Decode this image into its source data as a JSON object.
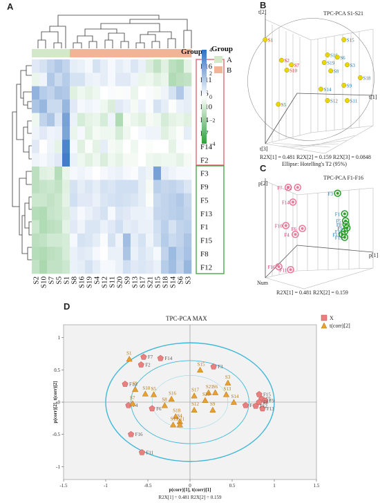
{
  "panels": {
    "A": "A",
    "B": "B",
    "C": "C",
    "D": "D"
  },
  "chart_data": [
    {
      "type": "heatmap",
      "title": "",
      "rows": [
        "F16",
        "F11",
        "F6",
        "F10",
        "F4",
        "F7",
        "F14",
        "F2",
        "F3",
        "F9",
        "F5",
        "F13",
        "F1",
        "F15",
        "F8",
        "F12"
      ],
      "columns": [
        "S2",
        "S10",
        "S7",
        "S5",
        "S1",
        "S8",
        "S16",
        "S19",
        "S4",
        "S12",
        "S11",
        "S20",
        "S9",
        "S13",
        "S17",
        "S21",
        "S15",
        "S18",
        "S14",
        "S6",
        "S3"
      ],
      "group_header": "Group",
      "groups": {
        "A": [
          "S2",
          "S10",
          "S7",
          "S5",
          "S1"
        ],
        "B": [
          "S8",
          "S16",
          "S19",
          "S4",
          "S12",
          "S11",
          "S20",
          "S9",
          "S13",
          "S17",
          "S21",
          "S15",
          "S18",
          "S14",
          "S6",
          "S3"
        ]
      },
      "legend": {
        "title": "Group",
        "items": [
          {
            "label": "A",
            "color": "#d2e8c8"
          },
          {
            "label": "B",
            "color": "#f2b496"
          }
        ]
      },
      "colorbar": {
        "ticks": [
          "4",
          "2",
          "0",
          "−2",
          "−4"
        ],
        "min": -4,
        "max": 4,
        "high_color": "#2f6fbf",
        "low_color": "#2f9e3a"
      },
      "row_box_colors": {
        "top": "#e05a6a",
        "bottom": "#3aa03a"
      },
      "values": [
        [
          0.6,
          0.8,
          1.2,
          1.5,
          1.2,
          0.5,
          0.4,
          0.2,
          0.8,
          0.5,
          0.2,
          0.5,
          0.3,
          0.7,
          0.4,
          -0.7,
          -1.2,
          -0.6,
          -1.3,
          -1.5,
          -0.5
        ],
        [
          -0.4,
          0.3,
          1.5,
          1.0,
          1.4,
          0.8,
          0.8,
          0.4,
          0.3,
          0.5,
          0.2,
          0.6,
          0.6,
          0.3,
          -0.4,
          -0.3,
          -0.6,
          -0.4,
          -1.5,
          -1.3,
          -1.2
        ],
        [
          2.1,
          1.4,
          1.2,
          1.6,
          1.5,
          -0.6,
          -0.3,
          -0.5,
          -0.3,
          0.0,
          0.1,
          -0.1,
          0.1,
          -0.4,
          0.0,
          0.1,
          -0.2,
          0.3,
          0.8,
          1.5,
          0.5
        ],
        [
          1.6,
          2.0,
          1.0,
          1.0,
          2.0,
          0.6,
          0.2,
          0.3,
          0.2,
          -0.3,
          -0.7,
          0.6,
          0.4,
          -0.2,
          0.4,
          0.1,
          0.8,
          0.5,
          -0.1,
          0.4,
          0.5
        ],
        [
          -0.3,
          1.2,
          1.6,
          0.7,
          2.6,
          0.4,
          -0.8,
          -0.5,
          -0.4,
          -0.8,
          0.3,
          -1.5,
          -0.2,
          -0.4,
          -0.6,
          -0.2,
          -0.3,
          -0.8,
          -0.5,
          -0.4,
          -0.6
        ],
        [
          0.3,
          0.6,
          0.3,
          0.4,
          2.5,
          -0.4,
          0.2,
          -0.6,
          -0.2,
          -0.3,
          -0.3,
          -0.8,
          -0.3,
          0.0,
          0.2,
          0.3,
          0.3,
          -0.6,
          -0.3,
          -0.1,
          0.5
        ],
        [
          0.6,
          0.0,
          0.3,
          -0.5,
          3.4,
          0.2,
          -0.6,
          -0.1,
          -0.5,
          0.5,
          -0.2,
          -0.3,
          0.0,
          -0.3,
          0.0,
          -0.1,
          0.0,
          0.0,
          -0.5,
          0.1,
          0.0
        ],
        [
          0.3,
          0.2,
          0.4,
          0.6,
          3.6,
          0.4,
          -0.3,
          -0.6,
          -0.3,
          -0.7,
          -0.3,
          -0.5,
          -0.2,
          -0.2,
          0.0,
          -0.3,
          -0.4,
          -0.3,
          -0.3,
          -0.5,
          -0.2
        ],
        [
          -1.3,
          -0.6,
          -0.5,
          -1.4,
          -0.4,
          0.2,
          0.3,
          0.2,
          0.0,
          0.2,
          0.3,
          0.4,
          0.2,
          0.1,
          0.5,
          0.3,
          2.6,
          0.5,
          0.3,
          0.2,
          0.2
        ],
        [
          -1.3,
          -1.1,
          -1.0,
          -1.2,
          -0.6,
          0.8,
          0.5,
          0.7,
          0.5,
          0.8,
          0.7,
          0.9,
          0.9,
          0.9,
          0.5,
          -0.2,
          1.3,
          1.1,
          1.2,
          1.0,
          0.7
        ],
        [
          -1.0,
          -1.0,
          -1.2,
          -1.0,
          -0.5,
          0.9,
          0.6,
          0.6,
          0.4,
          0.7,
          0.8,
          0.9,
          0.8,
          0.7,
          0.5,
          -0.1,
          1.0,
          1.2,
          1.3,
          1.5,
          1.1
        ],
        [
          -1.4,
          -1.5,
          -1.1,
          -1.0,
          -0.7,
          0.5,
          0.2,
          0.4,
          0.6,
          0.8,
          0.2,
          0.7,
          0.6,
          0.4,
          0.4,
          0.3,
          1.1,
          1.2,
          1.3,
          1.4,
          1.2
        ],
        [
          -1.0,
          -1.5,
          -1.3,
          -1.2,
          -0.5,
          0.6,
          0.3,
          0.7,
          0.7,
          0.4,
          0.6,
          0.9,
          0.5,
          0.6,
          0.4,
          0.4,
          0.9,
          1.3,
          0.8,
          1.2,
          1.3
        ],
        [
          -1.3,
          -1.2,
          -0.9,
          -0.9,
          -0.8,
          0.2,
          0.8,
          0.7,
          0.5,
          0.1,
          0.8,
          0.3,
          1.8,
          0.5,
          0.8,
          0.3,
          0.8,
          1.4,
          1.0,
          1.2,
          1.6
        ],
        [
          -1.4,
          -1.5,
          -1.3,
          -1.2,
          -0.8,
          0.4,
          0.6,
          0.5,
          0.2,
          0.0,
          0.4,
          0.4,
          1.6,
          0.4,
          0.7,
          0.5,
          0.2,
          1.2,
          1.9,
          1.3,
          1.7
        ],
        [
          -1.2,
          -1.6,
          -1.2,
          -1.2,
          -1.0,
          0.4,
          0.5,
          0.8,
          0.5,
          0.2,
          0.2,
          0.4,
          0.9,
          0.6,
          0.7,
          0.6,
          0.4,
          1.4,
          1.8,
          1.2,
          2.0
        ]
      ]
    },
    {
      "type": "scatter",
      "title": "TPC-PCA S1-S21",
      "axis_labels": [
        "t[1]",
        "t[2]",
        "t[3]"
      ],
      "footnote": [
        "R2X[1] = 0.481  R2X[2] = 0.159  R2X[3] = 0.0848",
        "Ellipse: Hotelling's T2 (95%)"
      ],
      "series": [
        {
          "name": "",
          "color": "#e8d800",
          "points": [
            {
              "label": "S1",
              "x": -0.75,
              "y": 0.55,
              "label_color": "#d62728"
            },
            {
              "label": "S2",
              "x": -0.5,
              "y": 0.28,
              "label_color": "#d62728"
            },
            {
              "label": "S7",
              "x": -0.35,
              "y": 0.22,
              "label_color": "#d62728"
            },
            {
              "label": "S10",
              "x": -0.42,
              "y": 0.15,
              "label_color": "#d62728"
            },
            {
              "label": "S5",
              "x": -0.55,
              "y": -0.3,
              "label_color": "#d62728"
            },
            {
              "label": "S15",
              "x": 0.45,
              "y": 0.55,
              "label_color": "#1f77b4"
            },
            {
              "label": "S16",
              "x": 0.2,
              "y": 0.35,
              "label_color": "#1f77b4"
            },
            {
              "label": "S6",
              "x": 0.35,
              "y": 0.32,
              "label_color": "#1f77b4"
            },
            {
              "label": "S19",
              "x": 0.15,
              "y": 0.25,
              "label_color": "#1f77b4"
            },
            {
              "label": "S3",
              "x": 0.5,
              "y": 0.22,
              "label_color": "#1f77b4"
            },
            {
              "label": "S8",
              "x": 0.25,
              "y": 0.14,
              "label_color": "#1f77b4"
            },
            {
              "label": "S18",
              "x": 0.7,
              "y": 0.05,
              "label_color": "#1f77b4"
            },
            {
              "label": "S9",
              "x": 0.45,
              "y": -0.05,
              "label_color": "#1f77b4"
            },
            {
              "label": "S14",
              "x": 0.1,
              "y": -0.1,
              "label_color": "#1f77b4"
            },
            {
              "label": "S12",
              "x": 0.2,
              "y": -0.25,
              "label_color": "#1f77b4"
            },
            {
              "label": "S11",
              "x": 0.5,
              "y": -0.25,
              "label_color": "#1f77b4"
            }
          ]
        }
      ]
    },
    {
      "type": "scatter",
      "title": "TPC-PCA F1-F16",
      "axis_labels": [
        "p[1]",
        "p[2]",
        "Num"
      ],
      "footnote": [
        "R2X[1] = 0.481  R2X[2] = 0.159"
      ],
      "series": [
        {
          "name": "",
          "color": "#e87a9a",
          "points": [
            {
              "label": "F7",
              "x": -0.6,
              "y": 0.75
            },
            {
              "label": "F2",
              "x": -0.4,
              "y": 0.75
            },
            {
              "label": "F14",
              "x": -0.5,
              "y": 0.5
            },
            {
              "label": "F10",
              "x": -0.65,
              "y": 0.1
            },
            {
              "label": "F4",
              "x": -0.45,
              "y": -0.05
            },
            {
              "label": "F6",
              "x": -0.3,
              "y": 0.05
            },
            {
              "label": "F16",
              "x": -0.8,
              "y": -0.6
            },
            {
              "label": "F11",
              "x": -0.55,
              "y": -0.65
            }
          ]
        },
        {
          "name": "",
          "color": "#2ca02c",
          "points": [
            {
              "label": "F3",
              "x": 0.45,
              "y": 0.65
            },
            {
              "label": "F1",
              "x": 0.6,
              "y": 0.3
            },
            {
              "label": "F5",
              "x": 0.62,
              "y": 0.18
            },
            {
              "label": "F8",
              "x": 0.63,
              "y": 0.12
            },
            {
              "label": "F9",
              "x": 0.65,
              "y": 0.06
            },
            {
              "label": "F12",
              "x": 0.6,
              "y": 0.0
            },
            {
              "label": "F13",
              "x": 0.55,
              "y": -0.05
            },
            {
              "label": "F15",
              "x": 0.6,
              "y": -0.1
            }
          ]
        }
      ]
    },
    {
      "type": "scatter",
      "title": "TPC-PCA MAX",
      "xlabel": "p(corr)[1], t(corr)[1]",
      "ylabel": "p(corr)[2], t(corr)[2]",
      "footnote": "R2X[1] = 0.481       R2X[2] = 0.159",
      "xlim": [
        -1.5,
        1.5
      ],
      "ylim": [
        -1.2,
        1.2
      ],
      "xticks": [
        "-1.5",
        "-1",
        "-0.5",
        "0",
        "0.5",
        "1",
        "1.5"
      ],
      "yticks": [
        "1",
        "0.5",
        "0",
        "-0.5",
        "-1"
      ],
      "ellipse_radii": [
        1.0,
        0.7
      ],
      "legend": [
        {
          "label": "X",
          "marker": "pentagon",
          "color": "#e88080"
        },
        {
          "label": "t(corr)[2]",
          "marker": "triangle",
          "color": "#e8a030"
        }
      ],
      "series": [
        {
          "name": "X",
          "marker": "pentagon",
          "color": "#e88080",
          "points": [
            {
              "label": "F7",
              "x": -0.55,
              "y": 0.7
            },
            {
              "label": "F14",
              "x": -0.35,
              "y": 0.68
            },
            {
              "label": "F2",
              "x": -0.58,
              "y": 0.58
            },
            {
              "label": "F3",
              "x": 0.28,
              "y": 0.55
            },
            {
              "label": "F10",
              "x": -0.77,
              "y": 0.28
            },
            {
              "label": "F15",
              "x": 0.82,
              "y": 0.12
            },
            {
              "label": "F5",
              "x": 0.85,
              "y": 0.05
            },
            {
              "label": "F9",
              "x": 0.89,
              "y": 0.02
            },
            {
              "label": "F8",
              "x": 0.82,
              "y": 0.0
            },
            {
              "label": "F1",
              "x": 0.66,
              "y": -0.05
            },
            {
              "label": "F13",
              "x": 0.86,
              "y": -0.1
            },
            {
              "label": "F12",
              "x": 0.78,
              "y": -0.06
            },
            {
              "label": "F4",
              "x": -0.73,
              "y": -0.05
            },
            {
              "label": "F6",
              "x": -0.45,
              "y": -0.1
            },
            {
              "label": "F16",
              "x": -0.7,
              "y": -0.5
            },
            {
              "label": "F11",
              "x": -0.57,
              "y": -0.78
            }
          ]
        },
        {
          "name": "t(corr)[2]",
          "marker": "triangle",
          "color": "#e8a030",
          "points": [
            {
              "label": "S1",
              "x": -0.72,
              "y": 0.67
            },
            {
              "label": "S15",
              "x": 0.12,
              "y": 0.5
            },
            {
              "label": "S3",
              "x": 0.45,
              "y": 0.3
            },
            {
              "label": "S2",
              "x": -0.65,
              "y": 0.2
            },
            {
              "label": "S10",
              "x": -0.53,
              "y": 0.13
            },
            {
              "label": "S5",
              "x": -0.43,
              "y": 0.12
            },
            {
              "label": "S7",
              "x": -0.68,
              "y": -0.02
            },
            {
              "label": "S21",
              "x": 0.22,
              "y": 0.15
            },
            {
              "label": "S6",
              "x": 0.3,
              "y": 0.15
            },
            {
              "label": "S17",
              "x": 0.05,
              "y": 0.1
            },
            {
              "label": "S16",
              "x": -0.22,
              "y": 0.05
            },
            {
              "label": "S13",
              "x": 0.43,
              "y": 0.12
            },
            {
              "label": "S20",
              "x": 0.18,
              "y": 0.03
            },
            {
              "label": "S14",
              "x": 0.52,
              "y": 0.0
            },
            {
              "label": "S8",
              "x": -0.3,
              "y": -0.05
            },
            {
              "label": "S12",
              "x": 0.05,
              "y": -0.12
            },
            {
              "label": "S9",
              "x": 0.27,
              "y": -0.12
            },
            {
              "label": "S18",
              "x": -0.17,
              "y": -0.22
            },
            {
              "label": "S19",
              "x": -0.2,
              "y": -0.35
            },
            {
              "label": "S4",
              "x": -0.12,
              "y": -0.3
            },
            {
              "label": "S11",
              "x": -0.12,
              "y": -0.35
            }
          ]
        }
      ]
    }
  ]
}
